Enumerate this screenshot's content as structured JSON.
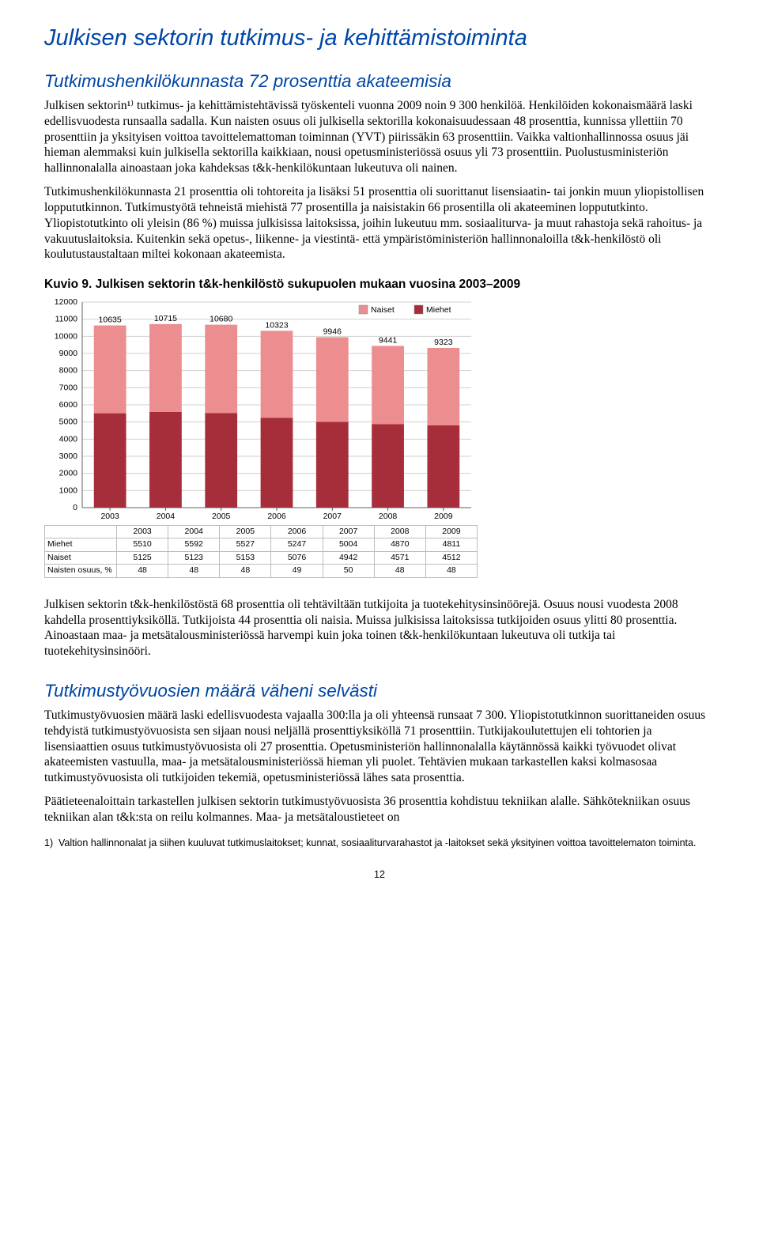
{
  "title": "Julkisen sektorin tutkimus- ja kehittämistoiminta",
  "section1": {
    "heading": "Tutkimushenkilökunnasta 72 prosenttia akateemisia",
    "paras": [
      "Julkisen sektorin¹⁾ tutkimus- ja kehittämistehtävissä työskenteli vuonna 2009 noin 9 300 henkilöä. Henkilöiden kokonaismäärä laski edellisvuodesta runsaalla sadalla. Kun naisten osuus oli julkisella sektorilla kokonaisuudessaan 48 prosenttia, kunnissa yllettiin 70 prosenttiin ja yksityisen voittoa tavoittelemattoman toiminnan (YVT) piirissäkin 63 prosenttiin. Vaikka valtionhallinnossa osuus jäi hieman alemmaksi kuin julkisella sektorilla kaikkiaan, nousi opetusministeriössä osuus yli 73 prosenttiin. Puolustusministeriön hallinnonalalla ainoastaan joka kahdeksas t&k-henkilökuntaan lukeutuva oli nainen.",
      "Tutkimushenkilökunnasta 21 prosenttia oli tohtoreita ja lisäksi 51 prosenttia oli suorittanut lisensiaatin- tai jonkin muun yliopistollisen loppututkinnon. Tutkimustyötä tehneistä miehistä 77 prosentilla ja naisistakin 66 prosentilla oli akateeminen loppututkinto. Yliopistotutkinto oli yleisin (86 %) muissa julkisissa laitoksissa, joihin lukeutuu mm. sosiaaliturva- ja muut rahastoja sekä rahoitus- ja vakuutuslaitoksia. Kuitenkin sekä opetus-, liikenne- ja viestintä- että ympäristöministeriön hallinnonaloilla t&k-henkilöstö oli koulutustaustaltaan miltei kokonaan akateemista."
    ]
  },
  "chart": {
    "caption": "Kuvio 9. Julkisen sektorin t&k-henkilöstö sukupuolen mukaan vuosina 2003–2009",
    "type": "stacked-bar",
    "categories": [
      "2003",
      "2004",
      "2005",
      "2006",
      "2007",
      "2008",
      "2009"
    ],
    "totals": [
      10635,
      10715,
      10680,
      10323,
      9946,
      9441,
      9323
    ],
    "series": [
      {
        "name": "Miehet",
        "color": "#a62e3a",
        "values": [
          5510,
          5592,
          5527,
          5247,
          5004,
          4870,
          4811
        ]
      },
      {
        "name": "Naiset",
        "color": "#ec8d90",
        "values": [
          5125,
          5123,
          5153,
          5076,
          4942,
          4571,
          4512
        ]
      }
    ],
    "legend": [
      {
        "label": "Naiset",
        "color": "#ec8d90"
      },
      {
        "label": "Miehet",
        "color": "#a62e3a"
      }
    ],
    "y": {
      "min": 0,
      "max": 12000,
      "step": 1000
    },
    "background": "#ffffff",
    "grid_color": "#d0d0d0",
    "axis_color": "#606060",
    "label_color": "#000000",
    "label_fontsize": 10.5,
    "totals_fontsize": 10.5,
    "bar_width_ratio": 0.58
  },
  "table": {
    "rows": [
      [
        "",
        "2003",
        "2004",
        "2005",
        "2006",
        "2007",
        "2008",
        "2009"
      ],
      [
        "Miehet",
        "5510",
        "5592",
        "5527",
        "5247",
        "5004",
        "4870",
        "4811"
      ],
      [
        "Naiset",
        "5125",
        "5123",
        "5153",
        "5076",
        "4942",
        "4571",
        "4512"
      ],
      [
        "Naisten osuus, %",
        "48",
        "48",
        "48",
        "49",
        "50",
        "48",
        "48"
      ]
    ]
  },
  "section2": {
    "para": "Julkisen sektorin t&k-henkilöstöstä 68 prosenttia oli tehtäviltään tutkijoita ja tuotekehitysinsinöörejä. Osuus nousi vuodesta 2008 kahdella prosenttiyksiköllä. Tutkijoista 44 prosenttia oli naisia. Muissa julkisissa laitoksissa tutkijoiden osuus ylitti 80 prosenttia. Ainoastaan maa- ja metsätalousministeriössä harvempi kuin joka toinen t&k-henkilökuntaan lukeutuva oli tutkija tai tuotekehitysinsinööri."
  },
  "section3": {
    "heading": "Tutkimustyövuosien määrä väheni selvästi",
    "paras": [
      "Tutkimustyövuosien määrä laski edellisvuodesta vajaalla 300:lla ja oli yhteensä runsaat 7 300. Yliopistotutkinnon suorittaneiden osuus tehdyistä tutkimustyövuosista sen sijaan nousi neljällä prosenttiyksiköllä 71 prosenttiin. Tutkijakoulutettujen eli tohtorien ja lisensiaattien osuus tutkimustyövuosista oli 27 prosenttia. Opetusministeriön hallinnonalalla käytännössä kaikki työvuodet olivat akateemisten vastuulla, maa- ja metsätalousministeriössä hieman yli puolet. Tehtävien mukaan tarkastellen kaksi kolmasosaa tutkimustyövuosista oli tutkijoiden tekemiä, opetusministeriössä lähes sata prosenttia.",
      "Päätieteenaloittain tarkastellen julkisen sektorin tutkimustyövuosista 36 prosenttia kohdistuu tekniikan alalle. Sähkötekniikan osuus tekniikan alan t&k:sta on reilu kolmannes. Maa- ja metsätaloustieteet on"
    ]
  },
  "footnote": {
    "num": "1)",
    "text": "Valtion hallinnonalat ja siihen kuuluvat tutkimuslaitokset; kunnat, sosiaaliturvarahastot ja -laitokset sekä yksityinen voittoa tavoittelematon toiminta."
  },
  "page_number": "12"
}
